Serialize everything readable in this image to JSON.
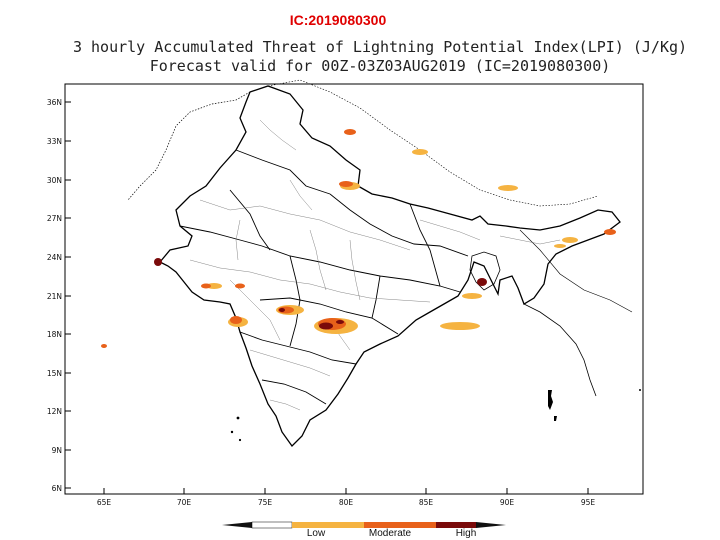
{
  "header": {
    "ic_label": "IC:2019080300"
  },
  "plot": {
    "title_line1": "3 hourly Accumulated Threat of Lightning Potential Index(LPI) (J/Kg)",
    "title_line2": "Forecast valid for 00Z-03Z03AUG2019 (IC=2019080300)"
  },
  "axes": {
    "lat_labels": [
      "36N",
      "33N",
      "30N",
      "27N",
      "24N",
      "21N",
      "18N",
      "15N",
      "12N",
      "9N",
      "6N"
    ],
    "lon_labels": [
      "65E",
      "70E",
      "75E",
      "80E",
      "85E",
      "90E",
      "95E"
    ]
  },
  "colorbar": {
    "labels": [
      "Low",
      "Moderate",
      "High"
    ],
    "colors": {
      "low": "#f5b341",
      "moderate": "#e8611a",
      "high": "#7a0a0a"
    }
  },
  "colors": {
    "accent": "#e00000"
  }
}
